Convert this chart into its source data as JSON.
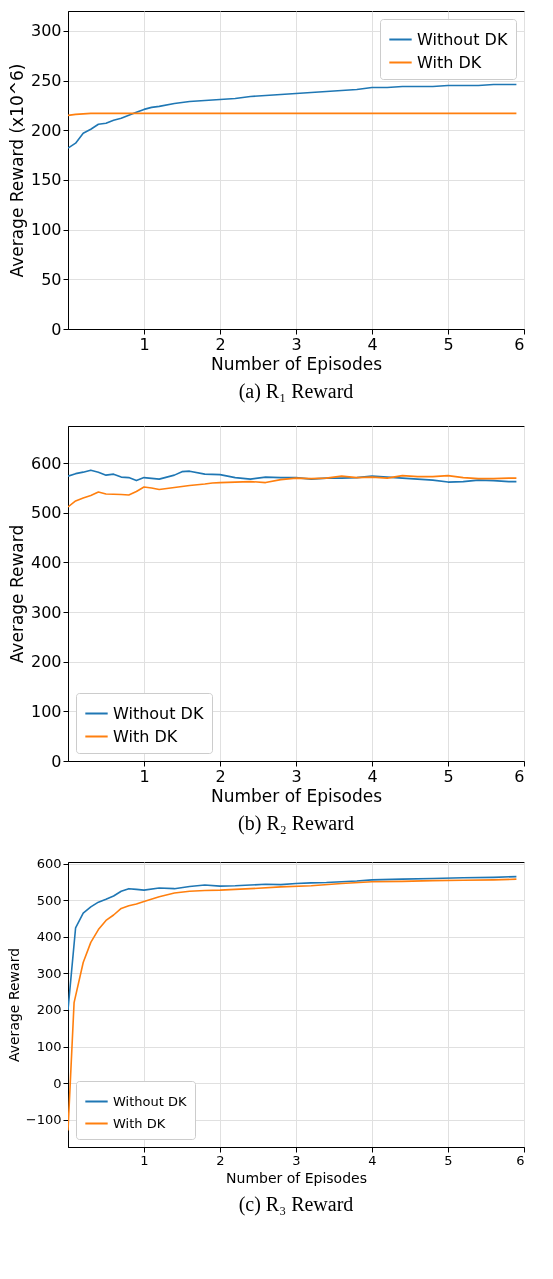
{
  "chart_data": [
    {
      "type": "line",
      "title": "(a) R₁ Reward",
      "xlabel": "Number of Episodes",
      "ylabel": "Average Reward (x10^6)",
      "xlim": [
        0,
        6
      ],
      "xticks": [
        1,
        2,
        3,
        4,
        5,
        6
      ],
      "ylim": [
        0,
        320
      ],
      "yticks": [
        0,
        50,
        100,
        150,
        200,
        250,
        300
      ],
      "grid": true,
      "legend": "top right",
      "series": [
        {
          "name": "Without DK",
          "color": "#1f77b4",
          "x": [
            0,
            0.1,
            0.2,
            0.3,
            0.4,
            0.5,
            0.6,
            0.7,
            0.8,
            0.9,
            1.0,
            1.1,
            1.2,
            1.4,
            1.6,
            1.8,
            2.0,
            2.2,
            2.4,
            2.6,
            2.8,
            3.0,
            3.2,
            3.4,
            3.6,
            3.8,
            4.0,
            4.2,
            4.4,
            4.6,
            4.8,
            5.0,
            5.2,
            5.4,
            5.6,
            5.8,
            5.9
          ],
          "values": [
            182,
            187,
            197,
            201,
            206,
            207,
            210,
            212,
            215,
            218,
            221,
            223,
            224,
            227,
            229,
            230,
            231,
            232,
            234,
            235,
            236,
            237,
            238,
            239,
            240,
            241,
            243,
            243,
            244,
            244,
            244,
            245,
            245,
            245,
            246,
            246,
            246
          ]
        },
        {
          "name": "With DK",
          "color": "#ff7f0e",
          "x": [
            0,
            0.1,
            0.3,
            0.5,
            1.0,
            2.0,
            3.0,
            4.0,
            5.0,
            5.9
          ],
          "values": [
            215,
            216,
            217,
            217,
            217,
            217,
            217,
            217,
            217,
            217
          ]
        }
      ]
    },
    {
      "type": "line",
      "title": "(b) R₂ Reward",
      "xlabel": "Number of Episodes",
      "ylabel": "Average Reward",
      "xlim": [
        0,
        6
      ],
      "xticks": [
        1,
        2,
        3,
        4,
        5,
        6
      ],
      "ylim": [
        0,
        675
      ],
      "yticks": [
        0,
        100,
        200,
        300,
        400,
        500,
        600
      ],
      "grid": true,
      "legend": "bottom left",
      "series": [
        {
          "name": "Without DK",
          "color": "#1f77b4",
          "x": [
            0,
            0.1,
            0.2,
            0.3,
            0.4,
            0.5,
            0.6,
            0.7,
            0.8,
            0.9,
            1.0,
            1.2,
            1.4,
            1.5,
            1.6,
            1.8,
            2.0,
            2.2,
            2.4,
            2.6,
            2.8,
            3.0,
            3.2,
            3.4,
            3.6,
            3.8,
            4.0,
            4.2,
            4.4,
            4.6,
            4.8,
            5.0,
            5.2,
            5.4,
            5.6,
            5.8,
            5.9
          ],
          "values": [
            574,
            579,
            582,
            586,
            582,
            576,
            578,
            572,
            571,
            565,
            571,
            568,
            576,
            583,
            584,
            578,
            577,
            571,
            568,
            572,
            571,
            571,
            568,
            570,
            570,
            571,
            574,
            572,
            570,
            568,
            566,
            562,
            563,
            566,
            565,
            563,
            563
          ]
        },
        {
          "name": "With DK",
          "color": "#ff7f0e",
          "x": [
            0,
            0.1,
            0.2,
            0.3,
            0.4,
            0.5,
            0.7,
            0.8,
            0.9,
            1.0,
            1.1,
            1.2,
            1.4,
            1.6,
            1.8,
            1.9,
            2.0,
            2.2,
            2.4,
            2.6,
            2.8,
            3.0,
            3.2,
            3.4,
            3.6,
            3.8,
            4.0,
            4.2,
            4.4,
            4.6,
            4.8,
            5.0,
            5.2,
            5.4,
            5.6,
            5.8,
            5.9
          ],
          "values": [
            512,
            524,
            530,
            535,
            542,
            538,
            537,
            536,
            543,
            552,
            550,
            547,
            551,
            555,
            558,
            560,
            561,
            562,
            563,
            561,
            567,
            570,
            569,
            570,
            574,
            571,
            572,
            570,
            575,
            573,
            573,
            575,
            571,
            569,
            569,
            570,
            570
          ]
        }
      ]
    },
    {
      "type": "line",
      "title": "(c) R₃ Reward",
      "xlabel": "Number of Episodes",
      "ylabel": "Average Reward",
      "xlim": [
        0,
        6
      ],
      "xticks": [
        1,
        2,
        3,
        4,
        5,
        6
      ],
      "ylim": [
        -175,
        605
      ],
      "yticks": [
        -100,
        0,
        100,
        200,
        300,
        400,
        500,
        600
      ],
      "grid": true,
      "legend": "bottom left",
      "series": [
        {
          "name": "Without DK",
          "color": "#1f77b4",
          "x": [
            0,
            0.1,
            0.2,
            0.3,
            0.4,
            0.5,
            0.6,
            0.7,
            0.8,
            0.9,
            1.0,
            1.2,
            1.4,
            1.6,
            1.8,
            2.0,
            2.2,
            2.4,
            2.6,
            2.8,
            3.0,
            3.2,
            3.4,
            3.6,
            3.8,
            4.0,
            4.4,
            4.8,
            5.2,
            5.6,
            5.9
          ],
          "values": [
            200,
            425,
            465,
            482,
            495,
            503,
            512,
            525,
            532,
            530,
            528,
            534,
            532,
            538,
            542,
            539,
            540,
            542,
            544,
            543,
            546,
            548,
            549,
            551,
            553,
            556,
            558,
            560,
            562,
            563,
            565
          ]
        },
        {
          "name": "With DK",
          "color": "#ff7f0e",
          "x": [
            0,
            0.08,
            0.2,
            0.3,
            0.4,
            0.5,
            0.6,
            0.7,
            0.8,
            0.9,
            1.0,
            1.2,
            1.4,
            1.6,
            1.8,
            2.0,
            2.4,
            2.8,
            3.2,
            3.6,
            4.0,
            4.4,
            4.8,
            5.2,
            5.6,
            5.9
          ],
          "values": [
            -130,
            220,
            330,
            385,
            420,
            445,
            460,
            478,
            485,
            490,
            497,
            510,
            520,
            525,
            527,
            528,
            532,
            537,
            540,
            546,
            551,
            552,
            554,
            555,
            556,
            558
          ]
        }
      ]
    }
  ]
}
